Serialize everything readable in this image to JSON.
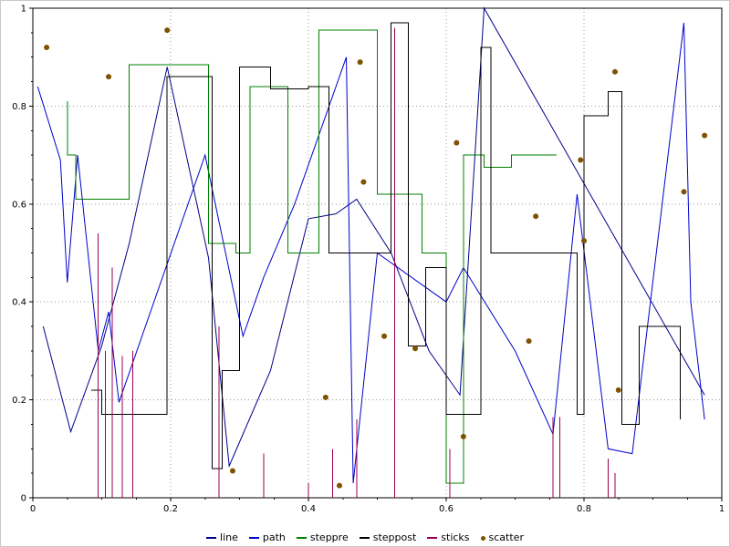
{
  "chart_data": {
    "type": "line",
    "title": "",
    "xlabel": "",
    "ylabel": "",
    "xlim": [
      0,
      1
    ],
    "ylim": [
      0,
      1
    ],
    "x_ticks": [
      "0",
      "0.2",
      "0.4",
      "0.6",
      "0.8",
      "1"
    ],
    "y_ticks": [
      "0",
      "0.2",
      "0.4",
      "0.6",
      "0.8",
      "1"
    ],
    "grid": "dotted",
    "grid_color": "#9a9a9a",
    "axis_color": "#000000",
    "legend_position": "bottom-center",
    "series": [
      {
        "name": "line",
        "type": "line",
        "color": "#00008b",
        "points": [
          [
            0.015,
            0.35
          ],
          [
            0.055,
            0.135
          ],
          [
            0.1,
            0.31
          ],
          [
            0.14,
            0.52
          ],
          [
            0.195,
            0.88
          ],
          [
            0.255,
            0.49
          ],
          [
            0.285,
            0.065
          ],
          [
            0.345,
            0.26
          ],
          [
            0.4,
            0.57
          ],
          [
            0.44,
            0.58
          ],
          [
            0.47,
            0.61
          ],
          [
            0.52,
            0.5
          ],
          [
            0.575,
            0.3
          ],
          [
            0.62,
            0.21
          ],
          [
            0.655,
            1.0
          ],
          [
            0.975,
            0.21
          ]
        ]
      },
      {
        "name": "path",
        "type": "line",
        "color": "#0000cc",
        "points": [
          [
            0.007,
            0.84
          ],
          [
            0.04,
            0.69
          ],
          [
            0.05,
            0.44
          ],
          [
            0.065,
            0.7
          ],
          [
            0.095,
            0.3
          ],
          [
            0.11,
            0.38
          ],
          [
            0.125,
            0.195
          ],
          [
            0.25,
            0.7
          ],
          [
            0.305,
            0.33
          ],
          [
            0.335,
            0.45
          ],
          [
            0.38,
            0.6
          ],
          [
            0.455,
            0.9
          ],
          [
            0.465,
            0.03
          ],
          [
            0.5,
            0.5
          ],
          [
            0.6,
            0.4
          ],
          [
            0.625,
            0.47
          ],
          [
            0.7,
            0.3
          ],
          [
            0.755,
            0.13
          ],
          [
            0.79,
            0.62
          ],
          [
            0.835,
            0.1
          ],
          [
            0.87,
            0.09
          ],
          [
            0.945,
            0.97
          ],
          [
            0.955,
            0.4
          ],
          [
            0.975,
            0.16
          ]
        ]
      },
      {
        "name": "steppre",
        "type": "steppre",
        "color": "#008000",
        "points": [
          [
            0.05,
            0.81
          ],
          [
            0.062,
            0.7
          ],
          [
            0.14,
            0.61
          ],
          [
            0.255,
            0.885
          ],
          [
            0.295,
            0.52
          ],
          [
            0.315,
            0.5
          ],
          [
            0.37,
            0.84
          ],
          [
            0.415,
            0.5
          ],
          [
            0.5,
            0.955
          ],
          [
            0.565,
            0.62
          ],
          [
            0.6,
            0.5
          ],
          [
            0.625,
            0.03
          ],
          [
            0.655,
            0.7
          ],
          [
            0.695,
            0.675
          ],
          [
            0.76,
            0.7
          ]
        ]
      },
      {
        "name": "steppost",
        "type": "steppost",
        "color": "#000000",
        "points": [
          [
            0.085,
            0.22
          ],
          [
            0.1,
            0.17
          ],
          [
            0.195,
            0.86
          ],
          [
            0.26,
            0.06
          ],
          [
            0.275,
            0.26
          ],
          [
            0.3,
            0.88
          ],
          [
            0.345,
            0.835
          ],
          [
            0.4,
            0.84
          ],
          [
            0.43,
            0.5
          ],
          [
            0.52,
            0.97
          ],
          [
            0.545,
            0.31
          ],
          [
            0.57,
            0.47
          ],
          [
            0.6,
            0.17
          ],
          [
            0.65,
            0.92
          ],
          [
            0.665,
            0.5
          ],
          [
            0.79,
            0.17
          ],
          [
            0.8,
            0.78
          ],
          [
            0.835,
            0.83
          ],
          [
            0.855,
            0.15
          ],
          [
            0.88,
            0.35
          ],
          [
            0.94,
            0.16
          ]
        ]
      },
      {
        "name": "sticks",
        "type": "sticks",
        "color": "#990050",
        "points": [
          [
            0.095,
            0.54
          ],
          [
            0.105,
            0.3
          ],
          [
            0.115,
            0.47
          ],
          [
            0.13,
            0.29
          ],
          [
            0.145,
            0.3
          ],
          [
            0.27,
            0.35
          ],
          [
            0.335,
            0.09
          ],
          [
            0.4,
            0.03
          ],
          [
            0.435,
            0.1
          ],
          [
            0.47,
            0.16
          ],
          [
            0.525,
            0.96
          ],
          [
            0.605,
            0.1
          ],
          [
            0.755,
            0.165
          ],
          [
            0.765,
            0.165
          ],
          [
            0.835,
            0.08
          ],
          [
            0.845,
            0.05
          ]
        ]
      },
      {
        "name": "scatter",
        "type": "scatter",
        "color": "#7f5200",
        "points": [
          [
            0.02,
            0.92
          ],
          [
            0.11,
            0.86
          ],
          [
            0.195,
            0.955
          ],
          [
            0.29,
            0.055
          ],
          [
            0.425,
            0.205
          ],
          [
            0.445,
            0.025
          ],
          [
            0.475,
            0.89
          ],
          [
            0.48,
            0.645
          ],
          [
            0.51,
            0.33
          ],
          [
            0.555,
            0.305
          ],
          [
            0.615,
            0.725
          ],
          [
            0.625,
            0.125
          ],
          [
            0.72,
            0.32
          ],
          [
            0.73,
            0.575
          ],
          [
            0.795,
            0.69
          ],
          [
            0.8,
            0.525
          ],
          [
            0.845,
            0.87
          ],
          [
            0.85,
            0.22
          ],
          [
            0.945,
            0.625
          ],
          [
            0.975,
            0.74
          ]
        ]
      }
    ]
  }
}
